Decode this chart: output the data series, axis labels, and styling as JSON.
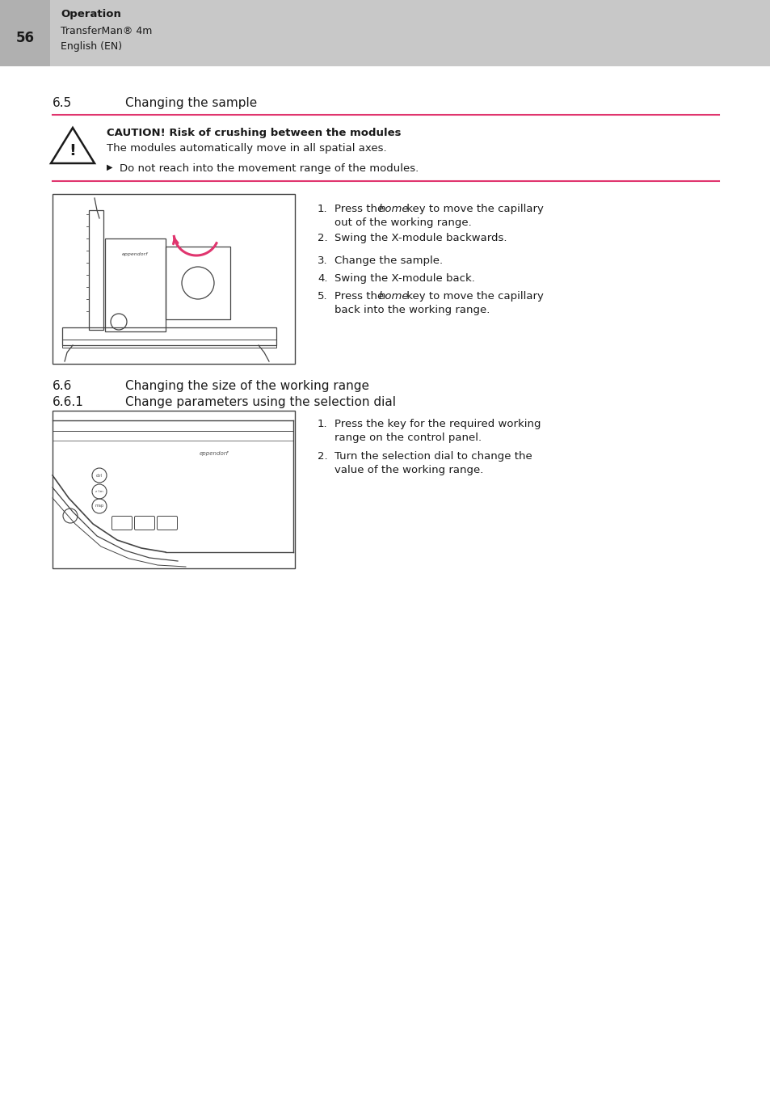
{
  "bg_color": "#ffffff",
  "header_bg": "#c8c8c8",
  "header_number": "56",
  "header_bold": "Operation",
  "header_line2": "TransferMan® 4m",
  "header_line3": "English (EN)",
  "section_number": "6.5",
  "section_title": "Changing the sample",
  "caution_bold": "CAUTION! Risk of crushing between the modules",
  "caution_text": "The modules automatically move in all spatial axes.",
  "caution_bullet": "Do not reach into the movement range of the modules.",
  "pink_line_color": "#e0356e",
  "steps_section1_pre1": [
    "Press the ",
    "home",
    " key to move the capillary"
  ],
  "steps_section1_pre1_line2": "out of the working range.",
  "steps_section1_2": "Swing the X-module backwards.",
  "steps_section1_3": "Change the sample.",
  "steps_section1_4": "Swing the X-module back.",
  "steps_section1_pre5": [
    "Press the ",
    "home",
    " key to move the capillary"
  ],
  "steps_section1_pre5_line2": "back into the working range.",
  "section66_number": "6.6",
  "section66_title": "Changing the size of the working range",
  "section661_number": "6.6.1",
  "section661_title": "Change parameters using the selection dial",
  "steps_section2_1": "Press the key for the required working",
  "steps_section2_1b": "range on the control panel.",
  "steps_section2_2": "Turn the selection dial to change the",
  "steps_section2_2b": "value of the working range.",
  "text_color": "#1a1a1a",
  "dark_color": "#1a1a1a",
  "gray_color": "#555555"
}
